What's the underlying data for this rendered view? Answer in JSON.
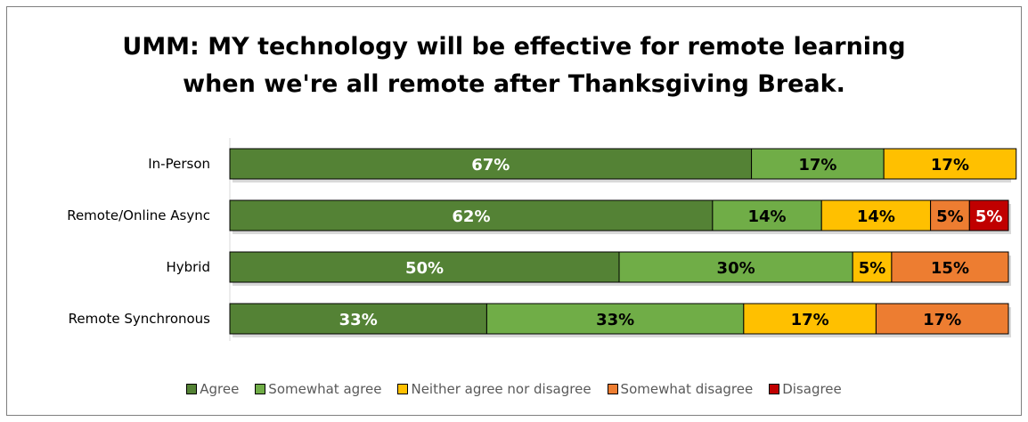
{
  "chart_data": {
    "type": "bar",
    "orientation": "horizontal",
    "stacked": true,
    "title": "UMM: MY technology will be effective for remote learning when we're all remote after Thanksgiving Break.",
    "title_lines": [
      "UMM: MY technology will be effective for remote learning",
      "when we're all remote after Thanksgiving Break."
    ],
    "categories": [
      "In-Person",
      "Remote/Online Async",
      "Hybrid",
      "Remote Synchronous"
    ],
    "xlim": [
      0,
      100
    ],
    "grid": false,
    "legend_position": "bottom",
    "series": [
      {
        "name": "Agree",
        "color": "#548235",
        "label_color": "#ffffff",
        "values": [
          67,
          62,
          50,
          33
        ],
        "labels": [
          "67%",
          "62%",
          "50%",
          "33%"
        ]
      },
      {
        "name": "Somewhat agree",
        "color": "#70ad47",
        "label_color": "#000000",
        "values": [
          17,
          14,
          30,
          33
        ],
        "labels": [
          "17%",
          "14%",
          "30%",
          "33%"
        ]
      },
      {
        "name": "Neither agree nor disagree",
        "color": "#ffc000",
        "label_color": "#000000",
        "values": [
          17,
          14,
          5,
          17
        ],
        "labels": [
          "17%",
          "14%",
          "5%",
          "17%"
        ]
      },
      {
        "name": "Somewhat disagree",
        "color": "#ed7d31",
        "label_color": "#000000",
        "values": [
          0,
          5,
          15,
          17
        ],
        "labels": [
          "",
          "5%",
          "15%",
          "17%"
        ]
      },
      {
        "name": "Disagree",
        "color": "#c00000",
        "label_color": "#ffffff",
        "values": [
          0,
          5,
          0,
          0
        ],
        "labels": [
          "",
          "5%",
          "",
          ""
        ]
      }
    ]
  }
}
